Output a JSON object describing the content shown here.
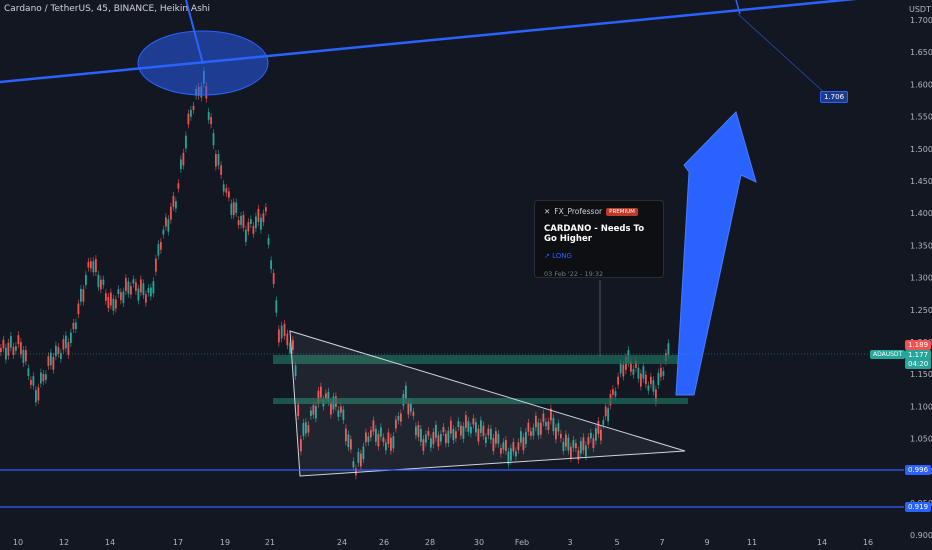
{
  "header": {
    "title": "Cardano / TetherUS, 45, BINANCE, Heikin Ashi"
  },
  "axis": {
    "quote_currency": "USDT",
    "y_ticks": [
      "1.700",
      "1.650",
      "1.600",
      "1.550",
      "1.500",
      "1.450",
      "1.400",
      "1.350",
      "1.300",
      "1.250",
      "1.200",
      "1.150",
      "1.100",
      "1.050",
      "1.000",
      "0.950",
      "0.900"
    ],
    "x_ticks": [
      "10",
      "12",
      "14",
      "17",
      "19",
      "21",
      "24",
      "26",
      "28",
      "30",
      "Feb",
      "3",
      "5",
      "7",
      "9",
      "11",
      "14",
      "16"
    ]
  },
  "price_labels": {
    "high": "1.189",
    "current": "1.177",
    "countdown": "04:20",
    "symbol": "ADAUSDT",
    "support_1": "0.996",
    "support_2": "0.919",
    "target": "1.706"
  },
  "idea_card": {
    "author": "FX_Professor",
    "badge": "PREMIUM",
    "headline": "CARDANO - Needs To Go Higher",
    "direction": "LONG",
    "date": "03 Feb '22 - 19:32"
  },
  "colors": {
    "background": "#131722",
    "up": "#26a69a",
    "down": "#ef5350",
    "drawing_blue": "#2962ff",
    "zone_green": "#1e6b5a"
  }
}
